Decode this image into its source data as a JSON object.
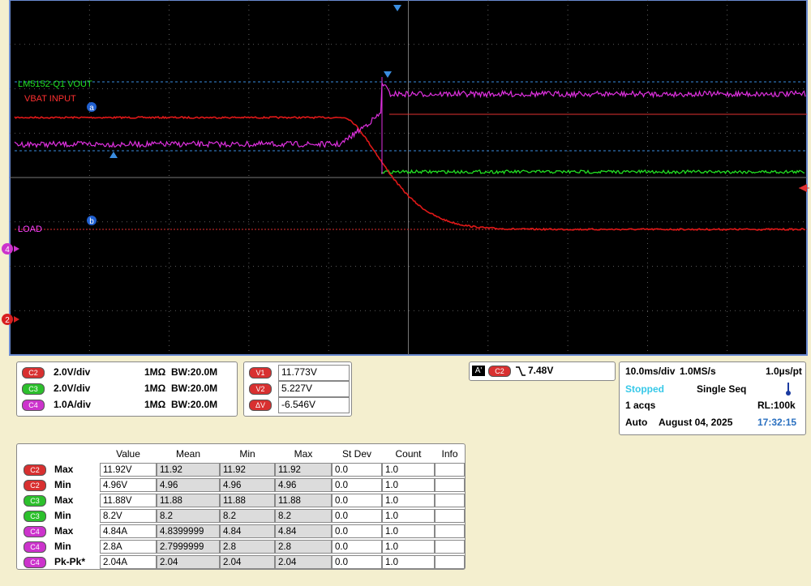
{
  "screen": {
    "labels": {
      "vout": "LM5152-Q1 VOUT",
      "vbat": "VBAT INPUT",
      "load": "LOAD"
    },
    "markers": {
      "a": "a",
      "b": "b",
      "ch4": "4",
      "ch2": "2"
    }
  },
  "channels": [
    {
      "source": "C2",
      "scale": "2.0V/div",
      "impedance": "1MΩ",
      "bandwidth": "BW:20.0M"
    },
    {
      "source": "C3",
      "scale": "2.0V/div",
      "impedance": "1MΩ",
      "bandwidth": "BW:20.0M"
    },
    {
      "source": "C4",
      "scale": "1.0A/div",
      "impedance": "1MΩ",
      "bandwidth": "BW:20.0M"
    }
  ],
  "cursors": [
    {
      "name": "V1",
      "value": "11.773V"
    },
    {
      "name": "V2",
      "value": "5.227V"
    },
    {
      "name": "ΔV",
      "value": "-6.546V"
    }
  ],
  "trigger": {
    "mode": "A'",
    "source": "C2",
    "level": "7.48V"
  },
  "timebase": {
    "scale": "10.0ms/div",
    "sample_rate": "1.0MS/s",
    "resolution": "1.0µs/pt",
    "state": "Stopped",
    "mode": "Single Seq",
    "acquisitions": "1 acqs",
    "record_length": "RL:100k",
    "trigger_mode": "Auto",
    "date": "August 04, 2025",
    "time": "17:32:15"
  },
  "measurements": {
    "headers": [
      "Value",
      "Mean",
      "Min",
      "Max",
      "St Dev",
      "Count",
      "Info"
    ],
    "rows": [
      {
        "source": "C2",
        "stat": "Max",
        "cells": [
          "11.92V",
          "11.92",
          "11.92",
          "11.92",
          "0.0",
          "1.0"
        ]
      },
      {
        "source": "C2",
        "stat": "Min",
        "cells": [
          "4.96V",
          "4.96",
          "4.96",
          "4.96",
          "0.0",
          "1.0"
        ]
      },
      {
        "source": "C3",
        "stat": "Max",
        "cells": [
          "11.88V",
          "11.88",
          "11.88",
          "11.88",
          "0.0",
          "1.0"
        ]
      },
      {
        "source": "C3",
        "stat": "Min",
        "cells": [
          "8.2V",
          "8.2",
          "8.2",
          "8.2",
          "0.0",
          "1.0"
        ]
      },
      {
        "source": "C4",
        "stat": "Max",
        "cells": [
          "4.84A",
          "4.8399999",
          "4.84",
          "4.84",
          "0.0",
          "1.0"
        ]
      },
      {
        "source": "C4",
        "stat": "Min",
        "cells": [
          "2.8A",
          "2.7999999",
          "2.8",
          "2.8",
          "0.0",
          "1.0"
        ]
      },
      {
        "source": "C4",
        "stat": "Pk-Pk*",
        "cells": [
          "2.04A",
          "2.04",
          "2.04",
          "2.04",
          "0.0",
          "1.0"
        ]
      }
    ]
  }
}
